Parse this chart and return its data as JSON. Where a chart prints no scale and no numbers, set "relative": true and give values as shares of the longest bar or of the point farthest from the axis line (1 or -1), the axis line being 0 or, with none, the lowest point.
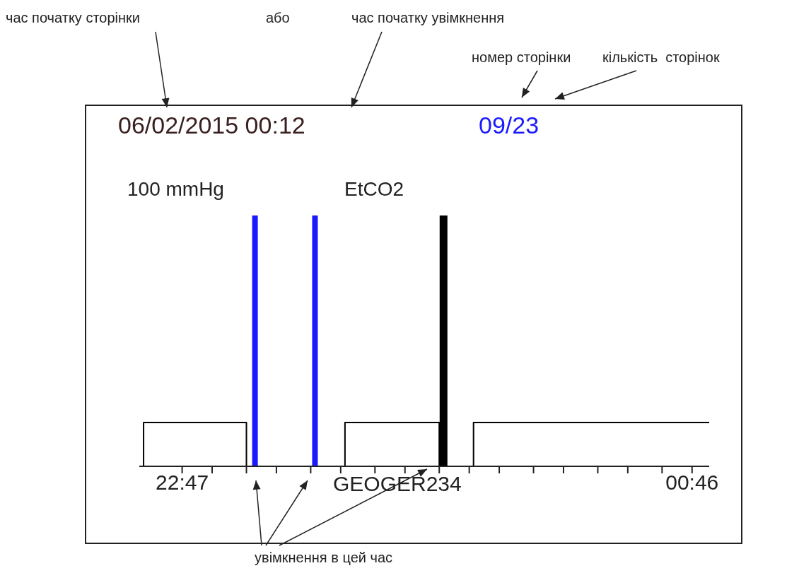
{
  "chart_data": {
    "type": "step",
    "title": "06/02/2015 00:12",
    "subtitle": "09/23",
    "relative": true,
    "x": [
      "2015-02-05T22:37",
      "2015-02-05T22:38",
      "2015-02-05T23:02",
      "2015-02-05T23:25",
      "2015-02-05T23:47",
      "2015-02-05T23:55",
      "2015-02-06T00:50"
    ],
    "series": [
      {
        "color": "#000000",
        "values": [
          0,
          1,
          0,
          1,
          0,
          1,
          1
        ]
      }
    ],
    "xlim": [
      "2015-02-05T22:37",
      "2015-02-06T00:50"
    ],
    "xticks": [
      {
        "value": "2015-02-05T22:47",
        "label": "22:47"
      },
      {
        "value": "2015-02-05T22:54",
        "label": null
      },
      {
        "value": "2015-02-05T23:02",
        "label": null
      },
      {
        "value": "2015-02-05T23:09",
        "label": null
      },
      {
        "value": "2015-02-05T23:17",
        "label": null
      },
      {
        "value": "2015-02-05T23:24",
        "label": null
      },
      {
        "value": "2015-02-05T23:32",
        "label": null
      },
      {
        "value": "2015-02-05T23:39",
        "label": null
      },
      {
        "value": "2015-02-05T23:47",
        "label": null
      },
      {
        "value": "2015-02-05T23:54",
        "label": null
      },
      {
        "value": "2015-02-06T00:01",
        "label": null
      },
      {
        "value": "2015-02-06T00:09",
        "label": null
      },
      {
        "value": "2015-02-06T00:16",
        "label": null
      },
      {
        "value": "2015-02-06T00:24",
        "label": null
      },
      {
        "value": "2015-02-06T00:31",
        "label": null
      },
      {
        "value": "2015-02-06T00:39",
        "label": null
      },
      {
        "value": "2015-02-06T00:46",
        "label": "00:46"
      }
    ],
    "ref_lines": [
      {
        "axis": "x",
        "value": "2015-02-05T23:04",
        "color": "#1a1aff"
      },
      {
        "axis": "x",
        "value": "2015-02-05T23:18",
        "color": "#1a1aff"
      },
      {
        "axis": "x",
        "value": "2015-02-05T23:48",
        "color": "#000000"
      }
    ],
    "annotations": [
      "час початку сторінки",
      "або",
      "час початку увімкнення",
      "номер сторінки",
      "кількість  сторінок",
      "100 mmHg",
      "GEOGER234",
      "увімкнення в цей час",
      "EtCO2"
    ],
    "marker": "none",
    "line_style": "solid"
  }
}
